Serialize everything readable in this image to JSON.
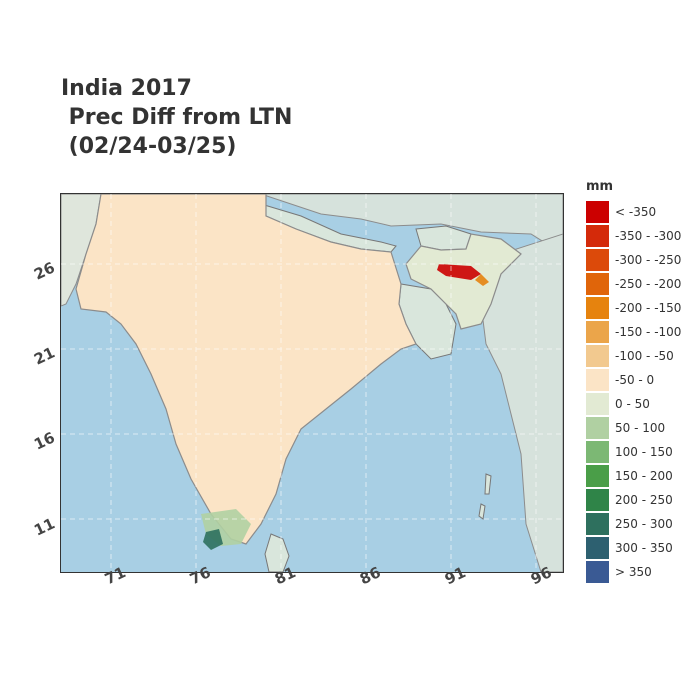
{
  "title": {
    "line1": "India 2017",
    "line2": " Prec Diff from LTN",
    "line3": " (02/24-03/25)"
  },
  "legend": {
    "title": "mm",
    "items": [
      {
        "label": "< -350",
        "color": "#cc0000"
      },
      {
        "label": "-350 - -300",
        "color": "#d42a0a"
      },
      {
        "label": "-300 - -250",
        "color": "#dc4a0a"
      },
      {
        "label": "-250 - -200",
        "color": "#e0650a"
      },
      {
        "label": "-200 - -150",
        "color": "#e6830e"
      },
      {
        "label": "-150 - -100",
        "color": "#eba54a"
      },
      {
        "label": "-100 - -50",
        "color": "#f2c98f"
      },
      {
        "label": "-50 - 0",
        "color": "#fbe4c6"
      },
      {
        "label": "0 - 50",
        "color": "#e2ead3"
      },
      {
        "label": "50 - 100",
        "color": "#b0d0a2"
      },
      {
        "label": "100 - 150",
        "color": "#7cb874"
      },
      {
        "label": "150 - 200",
        "color": "#4a9e48"
      },
      {
        "label": "200 - 250",
        "color": "#2f8448"
      },
      {
        "label": "250 - 300",
        "color": "#2e705e"
      },
      {
        "label": "300 - 350",
        "color": "#2d6070"
      },
      {
        "label": "> 350",
        "color": "#3a5a94"
      }
    ]
  },
  "axes": {
    "x_ticks": [
      "71",
      "76",
      "81",
      "86",
      "91",
      "96"
    ],
    "y_ticks": [
      "26",
      "21",
      "16",
      "11"
    ]
  },
  "colors": {
    "ocean": "#a8cfe4",
    "land": "#fbe4c6",
    "neighbor_land": "#d9e6dc",
    "border": "#8c8c8c"
  }
}
